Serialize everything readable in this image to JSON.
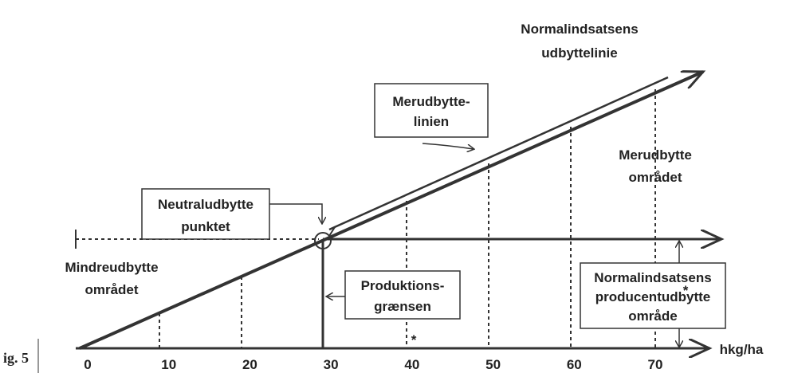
{
  "title": {
    "lines": [
      "Normalindsatsens",
      "udbyttelinie"
    ]
  },
  "labels": {
    "merudbytte_linien": [
      "Merudbytte-",
      "linien"
    ],
    "merudbytte_omraadet": [
      "Merudbytte",
      "området"
    ],
    "neutraludbytte": [
      "Neutraludbytte",
      "punktet"
    ],
    "mindreudbytte": [
      "Mindreudbytte",
      "området"
    ],
    "produktion": [
      "Produktions-",
      "grænsen"
    ],
    "producent": [
      "Normalindsatsens",
      "producentudbytte",
      "område"
    ],
    "stars": [
      "*",
      "*"
    ]
  },
  "axis": {
    "ticks": [
      0,
      10,
      20,
      30,
      40,
      50,
      60,
      70
    ],
    "unit": "hkg/ha"
  },
  "figure": "ig. 5"
}
